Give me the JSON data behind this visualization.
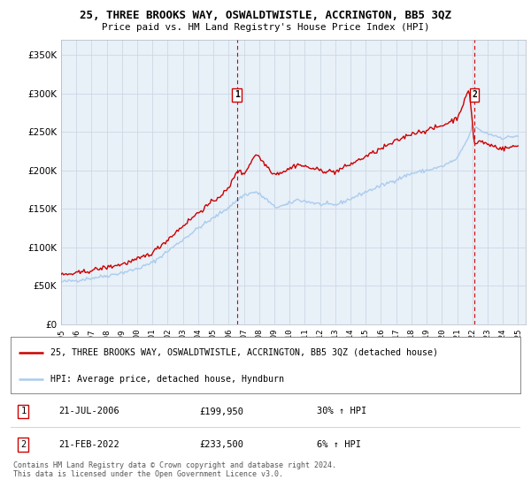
{
  "title": "25, THREE BROOKS WAY, OSWALDTWISTLE, ACCRINGTON, BB5 3QZ",
  "subtitle": "Price paid vs. HM Land Registry's House Price Index (HPI)",
  "legend_line1": "25, THREE BROOKS WAY, OSWALDTWISTLE, ACCRINGTON, BB5 3QZ (detached house)",
  "legend_line2": "HPI: Average price, detached house, Hyndburn",
  "footnote1": "Contains HM Land Registry data © Crown copyright and database right 2024.",
  "footnote2": "This data is licensed under the Open Government Licence v3.0.",
  "sale1_date": "21-JUL-2006",
  "sale1_price": "£199,950",
  "sale1_hpi": "30% ↑ HPI",
  "sale2_date": "21-FEB-2022",
  "sale2_price": "£233,500",
  "sale2_hpi": "6% ↑ HPI",
  "sale1_x": 2006.55,
  "sale2_x": 2022.13,
  "red_color": "#cc0000",
  "blue_color": "#aaccee",
  "plot_bg": "#e8f0f8",
  "ylim": [
    0,
    370000
  ],
  "xlim": [
    1995.0,
    2025.5
  ]
}
